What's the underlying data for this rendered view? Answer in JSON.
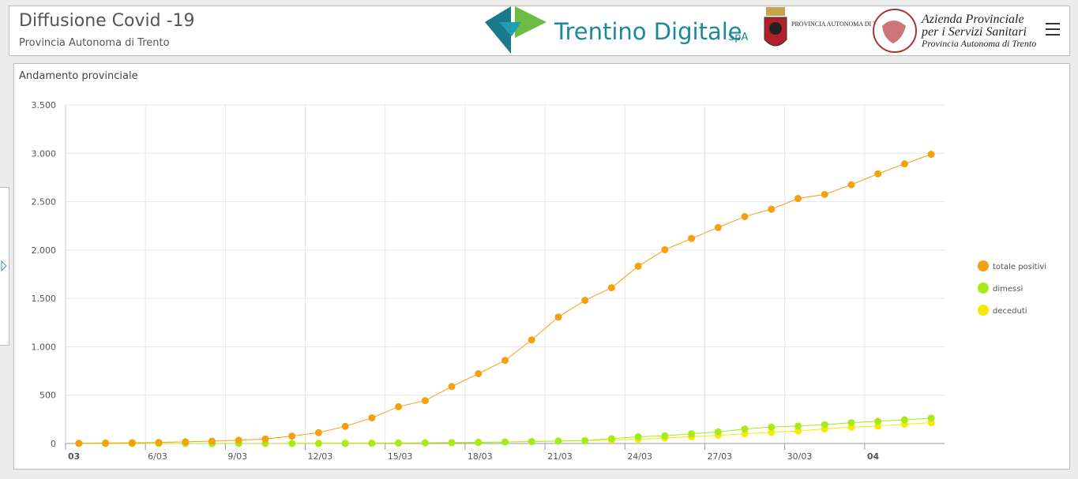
{
  "header": {
    "title": "Diffusione Covid -19",
    "subtitle": "Provincia Autonoma di Trento",
    "logo_td": "Trentino Digitale",
    "logo_td_suffix": "SpA",
    "logo_pat": "PROVINCIA AUTONOMA DI TRENTO",
    "logo_apss_line1": "Azienda Provinciale",
    "logo_apss_line2": "per i Servizi Sanitari",
    "logo_apss_line3": "Provincia Autonoma di Trento"
  },
  "panel_title": "Andamento provinciale",
  "chart_data": {
    "type": "line",
    "categories": [
      "3/03",
      "4/03",
      "5/03",
      "6/03",
      "7/03",
      "8/03",
      "9/03",
      "10/03",
      "11/03",
      "12/03",
      "13/03",
      "14/03",
      "15/03",
      "16/03",
      "17/03",
      "18/03",
      "19/03",
      "20/03",
      "21/03",
      "22/03",
      "23/03",
      "24/03",
      "25/03",
      "26/03",
      "27/03",
      "28/03",
      "29/03",
      "30/03",
      "31/03",
      "1/04",
      "2/04",
      "3/04",
      "4/04"
    ],
    "xticks": [
      {
        "value": "3/03",
        "label": "03"
      },
      "6/03",
      "9/03",
      "12/03",
      "15/03",
      "18/03",
      "21/03",
      "24/03",
      "27/03",
      "30/03",
      {
        "value": "2/04",
        "label": "04"
      }
    ],
    "series": [
      {
        "name": "totale positivi",
        "color": "#f5a00f",
        "values": [
          2,
          5,
          7,
          11,
          17,
          24,
          34,
          47,
          76,
          112,
          177,
          265,
          380,
          443,
          589,
          722,
          859,
          1071,
          1307,
          1480,
          1610,
          1833,
          2003,
          2120,
          2233,
          2346,
          2422,
          2533,
          2575,
          2675,
          2788,
          2891,
          2990
        ]
      },
      {
        "name": "dimessi",
        "color": "#a6ea1a",
        "values": [
          0,
          0,
          0,
          0,
          0,
          0,
          0,
          0,
          0,
          0,
          0,
          2,
          4,
          6,
          8,
          10,
          15,
          20,
          25,
          30,
          50,
          70,
          80,
          100,
          120,
          150,
          170,
          180,
          195,
          215,
          230,
          245,
          262
        ]
      },
      {
        "name": "deceduti",
        "color": "#f7ea00",
        "values": [
          0,
          0,
          0,
          0,
          0,
          0,
          0,
          0,
          2,
          3,
          4,
          5,
          6,
          8,
          10,
          13,
          16,
          20,
          25,
          30,
          36,
          44,
          56,
          70,
          85,
          100,
          115,
          130,
          150,
          170,
          180,
          200,
          215
        ]
      }
    ],
    "ylim": [
      0,
      3500
    ],
    "yticks": [
      0,
      {
        "value": 500,
        "label": "500"
      },
      {
        "value": 1000,
        "label": "1.000"
      },
      {
        "value": 1500,
        "label": "1.500"
      },
      {
        "value": 2000,
        "label": "2.000"
      },
      {
        "value": 2500,
        "label": "2.500"
      },
      {
        "value": 3000,
        "label": "3.000"
      },
      {
        "value": 3500,
        "label": "3.500"
      }
    ],
    "grid": true,
    "legend": "right"
  }
}
